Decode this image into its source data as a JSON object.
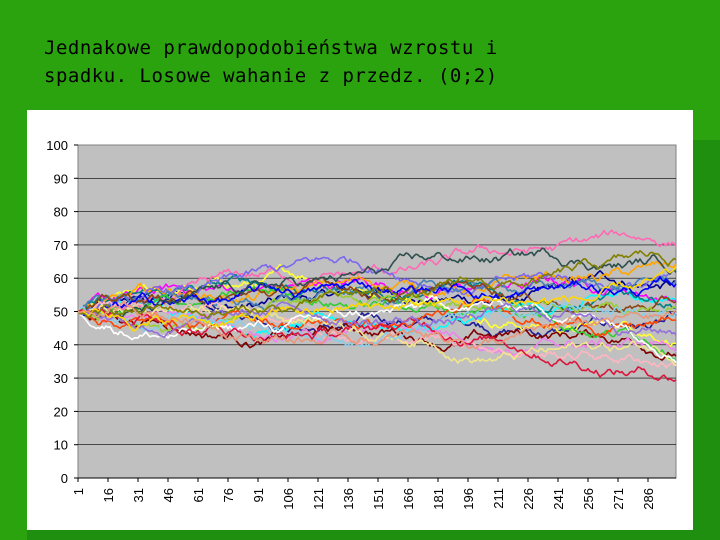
{
  "slide": {
    "title_line1": "Jednakowe prawdopodobieństwa wzrostu i",
    "title_line2": "spadku. Losowe wahanie z przedz. (0;2)"
  },
  "chart_data": {
    "type": "line",
    "title": "",
    "xlabel": "",
    "ylabel": "",
    "ylim": [
      0,
      100
    ],
    "y_ticks": [
      "0",
      "10",
      "20",
      "30",
      "40",
      "50",
      "60",
      "70",
      "80",
      "90",
      "100"
    ],
    "x_range": [
      1,
      300
    ],
    "x_ticks": [
      "1",
      "16",
      "31",
      "46",
      "61",
      "76",
      "91",
      "106",
      "121",
      "136",
      "151",
      "166",
      "181",
      "196",
      "211",
      "226",
      "241",
      "256",
      "271",
      "286"
    ],
    "grid": true,
    "legend": "none",
    "plot_background": "#c0c0c0",
    "start_value": 50,
    "steps": 300,
    "step_range": [
      -1,
      1
    ],
    "series_colors": [
      "#00008b",
      "#1e1e96",
      "#ffff33",
      "#ff00ff",
      "#00ffff",
      "#800000",
      "#008080",
      "#ffa500",
      "#ff69b4",
      "#7b68ee",
      "#ee82ee",
      "#4682b4",
      "#32cd32",
      "#8b4513",
      "#ffb6c1",
      "#0000ff",
      "#9acd32",
      "#ff4500",
      "#f0e68c",
      "#2f4f4f",
      "#87ceeb",
      "#ffffff",
      "#dc143c",
      "#9370db",
      "#ffd700",
      "#808000",
      "#e9967a"
    ]
  }
}
